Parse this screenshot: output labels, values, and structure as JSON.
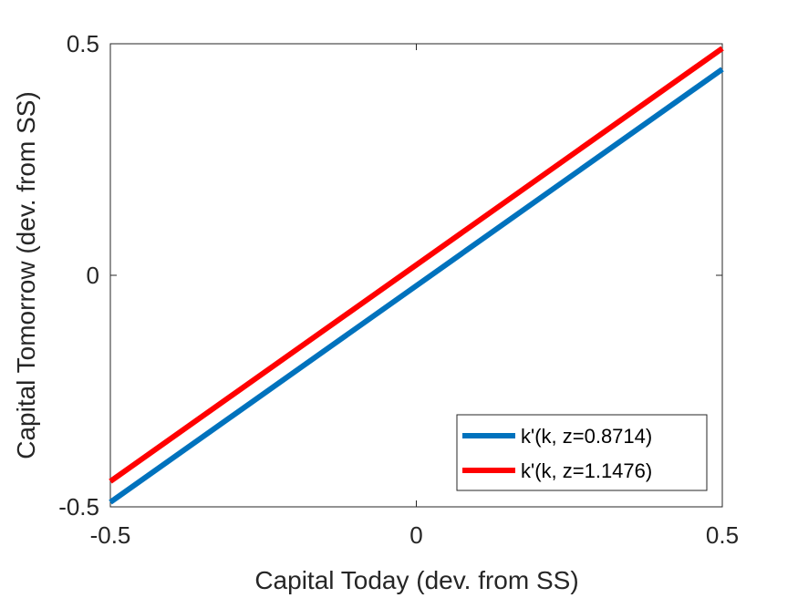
{
  "chart_data": {
    "type": "line",
    "title": "",
    "xlabel": "Capital Today (dev. from SS)",
    "ylabel": "Capital Tomorrow (dev. from SS)",
    "xlim": [
      -0.5,
      0.5
    ],
    "ylim": [
      -0.5,
      0.5
    ],
    "xticks": [
      -0.5,
      0,
      0.5
    ],
    "yticks": [
      -0.5,
      0,
      0.5
    ],
    "xtick_labels": [
      "-0.5",
      "0",
      "0.5"
    ],
    "ytick_labels": [
      "-0.5",
      "0",
      "0.5"
    ],
    "grid": false,
    "legend_position": "bottom-right",
    "series": [
      {
        "name": "k'(k, z=0.8714)",
        "color": "#0072BD",
        "x": [
          -0.5,
          0.5
        ],
        "y": [
          -0.49,
          0.445
        ]
      },
      {
        "name": "k'(k, z=1.1476)",
        "color": "#FF0000",
        "x": [
          -0.5,
          0.5
        ],
        "y": [
          -0.445,
          0.49
        ]
      }
    ]
  }
}
